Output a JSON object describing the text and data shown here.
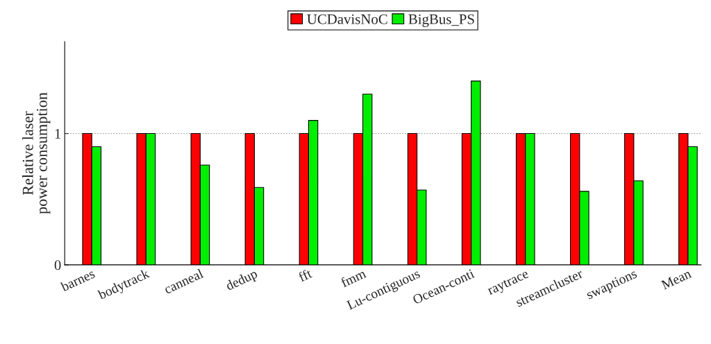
{
  "chart_data": {
    "type": "bar",
    "ylabel": "Relative laser\npower consumption",
    "categories": [
      "barnes",
      "bodytrack",
      "canneal",
      "dedup",
      "fft",
      "fmm",
      "Lu-contiguous",
      "Ocean-conti",
      "raytrace",
      "streamcluster",
      "swaptions",
      "Mean"
    ],
    "series": [
      {
        "name": "UCDavisNoC",
        "color": "#ff0000",
        "values": [
          1,
          1,
          1,
          1,
          1,
          1,
          1,
          1,
          1,
          1,
          1,
          1
        ]
      },
      {
        "name": "BigBus_PS",
        "color": "#00ee00",
        "values": [
          0.9,
          1.0,
          0.76,
          0.59,
          1.1,
          1.3,
          0.57,
          1.4,
          1.0,
          0.56,
          0.64,
          0.9
        ]
      }
    ],
    "ylim": [
      0,
      1.7
    ],
    "yticks": [
      0,
      1
    ],
    "grid": "y",
    "legend": "top"
  }
}
